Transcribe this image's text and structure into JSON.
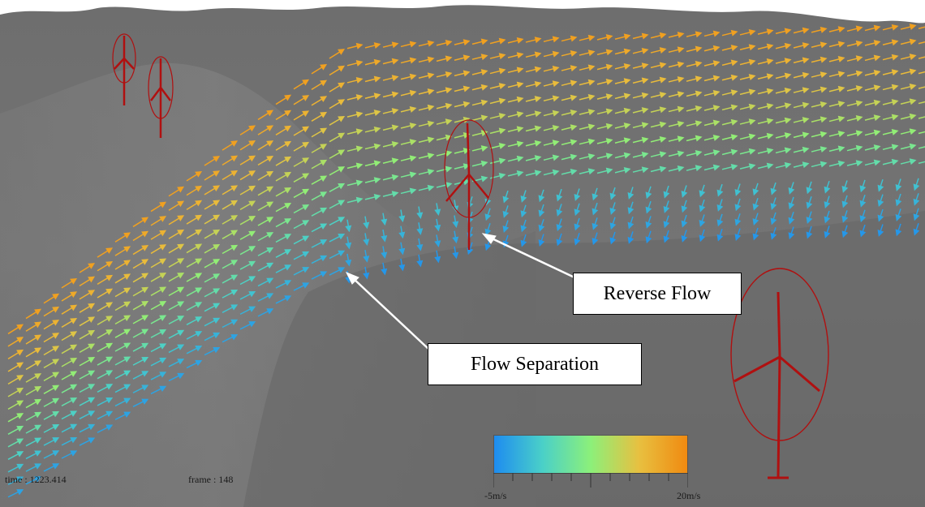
{
  "annotations": {
    "reverse_flow": "Reverse Flow",
    "flow_separation": "Flow Separation"
  },
  "hud": {
    "time": "time : 1223.414",
    "frame": "frame : 148"
  },
  "colorbar": {
    "min_label": "-5m/s",
    "max_label": "20m/s",
    "colors": [
      "#1e8cf0",
      "#4ad0c8",
      "#8cf07a",
      "#e8c040",
      "#f08a10"
    ]
  },
  "scene": {
    "terrain_color": "#707070",
    "sky_color": "#ffffff",
    "turbine_color": "#b01010",
    "arrow_color_low": "#1e8cf0",
    "arrow_color_high": "#f0a020",
    "icons": [
      "wind-turbine-icon",
      "velocity-arrow-icon"
    ]
  }
}
